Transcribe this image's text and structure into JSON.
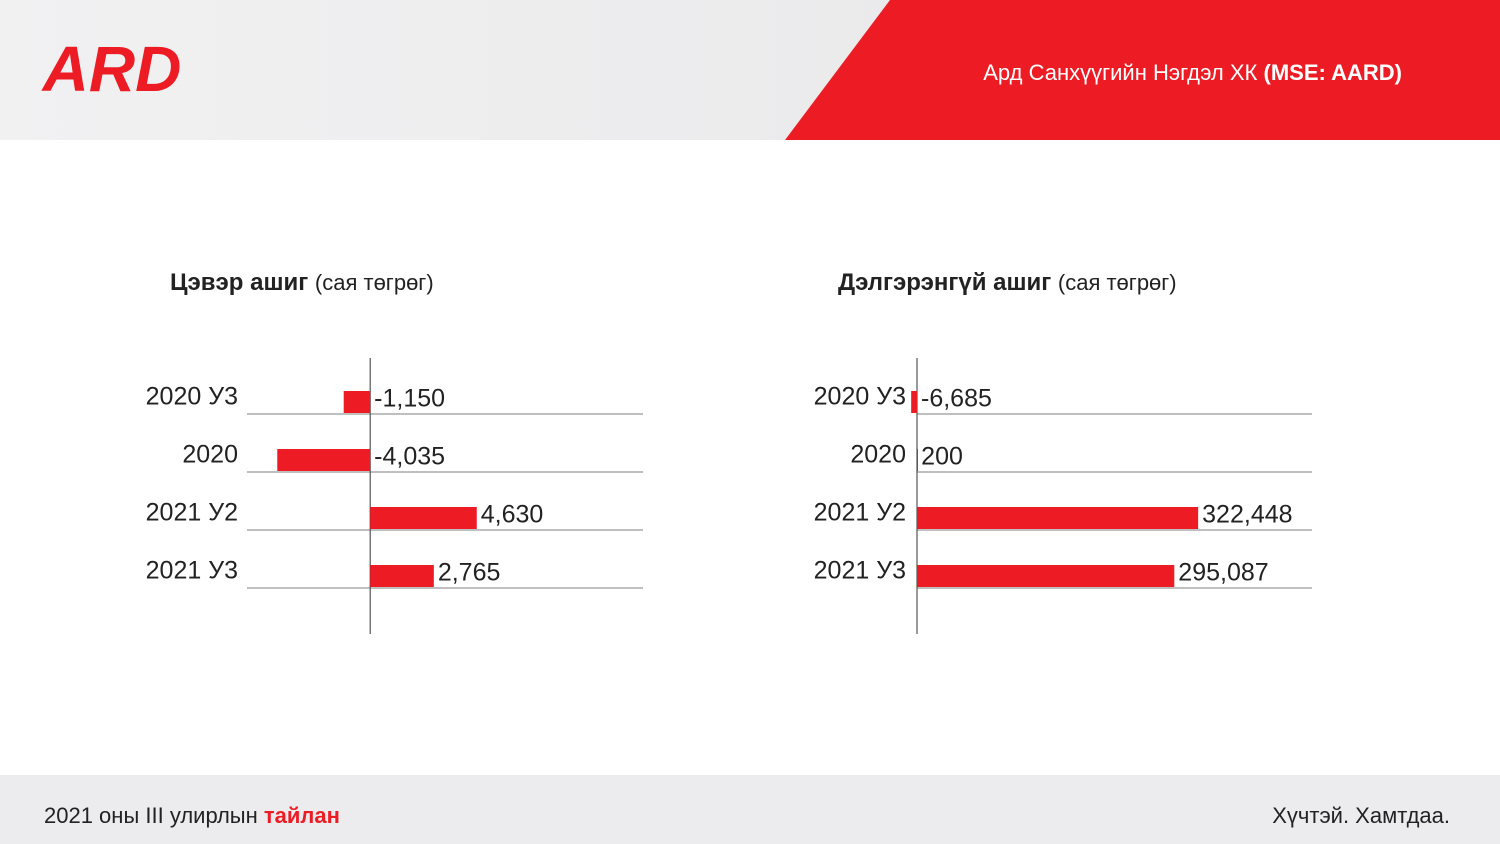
{
  "header": {
    "logo": "ARD",
    "company": "Ард Санхүүгийн Нэгдэл ХК",
    "ticker": "(MSE: AARD)"
  },
  "footer": {
    "report": "2021 оны III улирлын",
    "report_highlight": "тайлан",
    "slogan": "Хүчтэй. Хамтдаа."
  },
  "chart_data": [
    {
      "type": "barh",
      "title": "Цэвэр ашиг",
      "unit": "(сая төгрөг)",
      "categories": [
        "2020 У3",
        "2020",
        "2021 У2",
        "2021 У3"
      ],
      "values": [
        -1150,
        -4035,
        4630,
        2765
      ],
      "value_labels": [
        "-1,150",
        "-4,035",
        "4,630",
        "2,765"
      ],
      "color": "#ed1c24",
      "xlim": [
        -5350,
        11850
      ]
    },
    {
      "type": "barh",
      "title": "Дэлгэрэнгүй ашиг",
      "unit": "(сая төгрөг)",
      "categories": [
        "2020 У3",
        "2020",
        "2021 У2",
        "2021 У3"
      ],
      "values": [
        -6685,
        200,
        322448,
        295087
      ],
      "value_labels": [
        "-6,685",
        "200",
        "322,448",
        "295,087"
      ],
      "color": "#ed1c24",
      "xlim": [
        0,
        453000
      ]
    }
  ]
}
